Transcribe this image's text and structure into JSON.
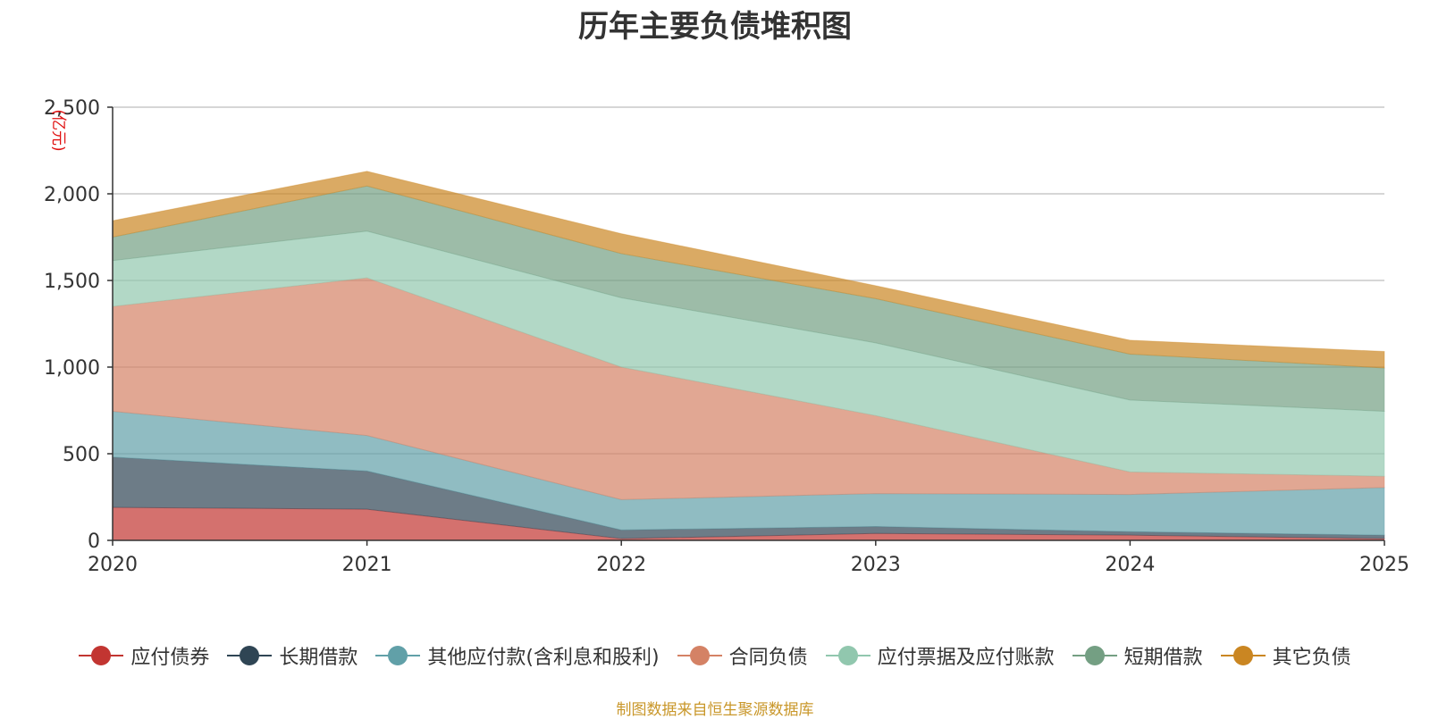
{
  "chart_data": {
    "type": "area",
    "stacked": true,
    "title": "历年主要负债堆积图",
    "ylabel": "(亿元)",
    "xlabel": "",
    "ylim": [
      0,
      2500
    ],
    "yticks": [
      0,
      500,
      1000,
      1500,
      2000,
      2500
    ],
    "ytick_labels": [
      "0",
      "500",
      "1,000",
      "1,500",
      "2,000",
      "2,500"
    ],
    "categories": [
      "2020",
      "2021",
      "2022",
      "2023",
      "2024",
      "2025"
    ],
    "grid": true,
    "legend_position": "bottom",
    "series": [
      {
        "name": "应付债券",
        "color": "#c23531",
        "values": [
          190,
          180,
          10,
          40,
          30,
          10
        ]
      },
      {
        "name": "长期借款",
        "color": "#2f4554",
        "values": [
          290,
          220,
          50,
          40,
          20,
          20
        ]
      },
      {
        "name": "其他应付款(含利息和股利)",
        "color": "#61a0a8",
        "values": [
          265,
          205,
          175,
          190,
          215,
          275
        ]
      },
      {
        "name": "合同负债",
        "color": "#d48265",
        "values": [
          605,
          910,
          765,
          450,
          130,
          65
        ]
      },
      {
        "name": "应付票据及应付账款",
        "color": "#91c7ae",
        "values": [
          265,
          270,
          400,
          420,
          415,
          375
        ]
      },
      {
        "name": "短期借款",
        "color": "#749f83",
        "values": [
          135,
          260,
          255,
          255,
          265,
          250
        ]
      },
      {
        "name": "其它负债",
        "color": "#ca8622",
        "values": [
          95,
          85,
          115,
          75,
          80,
          95
        ]
      }
    ]
  },
  "footer": {
    "source": "制图数据来自恒生聚源数据库"
  }
}
